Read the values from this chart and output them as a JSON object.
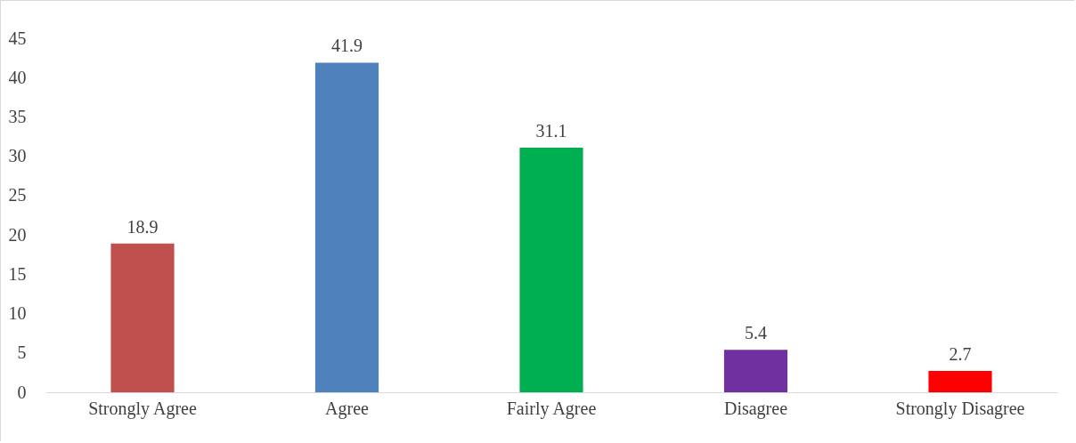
{
  "chart_data": {
    "type": "bar",
    "categories": [
      "Strongly Agree",
      "Agree",
      "Fairly Agree",
      "Disagree",
      "Strongly Disagree"
    ],
    "values": [
      18.9,
      41.9,
      31.1,
      5.4,
      2.7
    ],
    "colors": [
      "#c0504d",
      "#4f81bd",
      "#00b050",
      "#7030a0",
      "#ff0000"
    ],
    "ylim": [
      0,
      45
    ],
    "yticks": [
      0,
      5,
      10,
      15,
      20,
      25,
      30,
      35,
      40,
      45
    ],
    "data_labels": true,
    "grid": false
  }
}
